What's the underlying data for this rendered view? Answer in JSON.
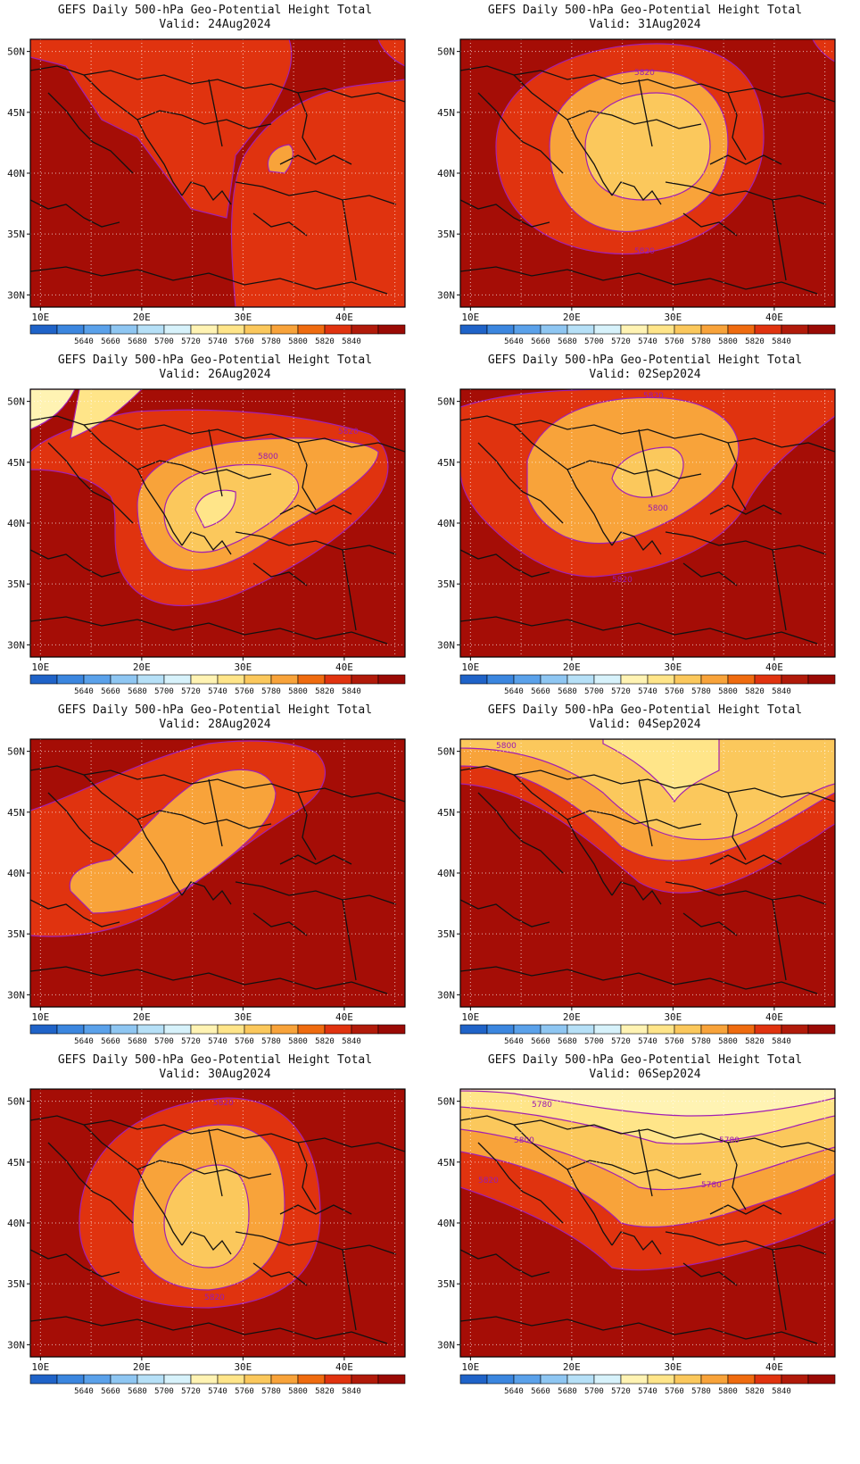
{
  "colorbar": {
    "colors": [
      "#1f63c8",
      "#3b86df",
      "#5aa1ea",
      "#8ec6f2",
      "#b6e0f7",
      "#d7f2fb",
      "#fff3b3",
      "#ffe589",
      "#fbc85c",
      "#f8a33a",
      "#ef6b0f",
      "#e0330f",
      "#b11a0a",
      "#9a0a05"
    ],
    "labels": [
      "5640",
      "5660",
      "5680",
      "5700",
      "5720",
      "5740",
      "5760",
      "5780",
      "5800",
      "5820",
      "5840"
    ]
  },
  "axis": {
    "lat_labels": [
      "50N",
      "45N",
      "40N",
      "35N",
      "30N"
    ],
    "lon_labels": [
      "10E",
      "20E",
      "30E",
      "40E"
    ]
  },
  "contour_colors": {
    "5760": "#fff3b3",
    "5780": "#ffe589",
    "5800": "#fbc85c",
    "5820": "#f8a33a",
    "5840": "#e0330f",
    "background": "#a50d06",
    "contour_line": "#a21fb3"
  },
  "panels": [
    {
      "title": "GEFS Daily 500-hPa Geo-Potential Height Total",
      "valid": "Valid: 24Aug2024",
      "contour_labels": []
    },
    {
      "title": "GEFS Daily 500-hPa Geo-Potential Height Total",
      "valid": "Valid: 31Aug2024",
      "contour_labels": [
        "5820",
        "5820"
      ]
    },
    {
      "title": "GEFS Daily 500-hPa Geo-Potential Height Total",
      "valid": "Valid: 26Aug2024",
      "contour_labels": [
        "5800",
        "5820"
      ]
    },
    {
      "title": "GEFS Daily 500-hPa Geo-Potential Height Total",
      "valid": "Valid: 02Sep2024",
      "contour_labels": [
        "5820",
        "5800",
        "5820"
      ]
    },
    {
      "title": "GEFS Daily 500-hPa Geo-Potential Height Total",
      "valid": "Valid: 28Aug2024",
      "contour_labels": []
    },
    {
      "title": "GEFS Daily 500-hPa Geo-Potential Height Total",
      "valid": "Valid: 04Sep2024",
      "contour_labels": [
        "5800"
      ]
    },
    {
      "title": "GEFS Daily 500-hPa Geo-Potential Height Total",
      "valid": "Valid: 30Aug2024",
      "contour_labels": [
        "5820",
        "5820"
      ]
    },
    {
      "title": "GEFS Daily 500-hPa Geo-Potential Height Total",
      "valid": "Valid: 06Sep2024",
      "contour_labels": [
        "5780",
        "5780",
        "5800",
        "5780",
        "5820"
      ]
    }
  ]
}
